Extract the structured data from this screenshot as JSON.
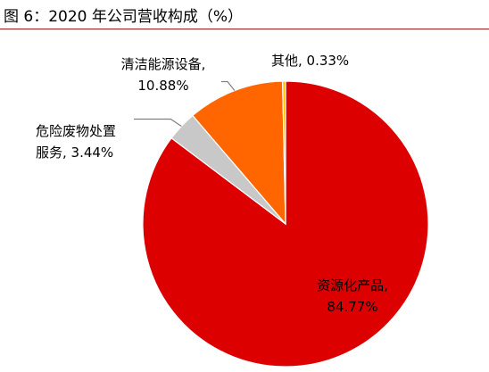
{
  "title": "图 6：2020 年公司营收构成（%）",
  "chart_data": {
    "type": "pie",
    "title": "图 6：2020 年公司营收构成（%）",
    "unit": "%",
    "slices": [
      {
        "name": "资源化产品",
        "value": 84.77,
        "label_line1": "资源化产品,",
        "label_line2": "84.77%",
        "color": "#dc0000"
      },
      {
        "name": "危险废物处置服务",
        "value": 3.44,
        "label_line1": "危险废物处置",
        "label_line2": "服务, 3.44%",
        "color": "#c8c8c8"
      },
      {
        "name": "清洁能源设备",
        "value": 10.88,
        "label_line1": "清洁能源设备,",
        "label_line2": "10.88%",
        "color": "#ff6600"
      },
      {
        "name": "其他",
        "value": 0.33,
        "label_line1": "其他, 0.33%",
        "label_line2": "",
        "color": "#ffc000"
      }
    ],
    "start_angle_deg": 0,
    "direction": "clockwise"
  }
}
